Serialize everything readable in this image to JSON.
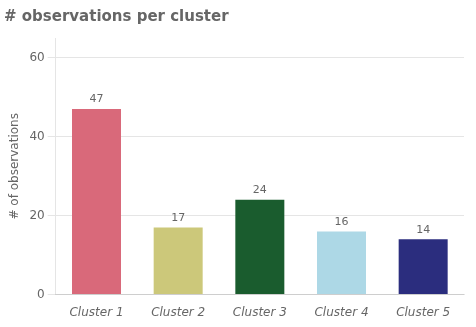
{
  "chart_data": {
    "type": "bar",
    "title": "# observations per cluster",
    "ylabel": "# of observations",
    "categories": [
      "Cluster 1",
      "Cluster 2",
      "Cluster 3",
      "Cluster 4",
      "Cluster 5"
    ],
    "values": [
      47,
      17,
      24,
      16,
      14
    ],
    "colors": [
      "#d9697a",
      "#ccc87a",
      "#1a5c2e",
      "#add8e6",
      "#2b2d7e"
    ],
    "ylim": [
      0,
      65
    ],
    "yticks": [
      0,
      20,
      40,
      60
    ],
    "grid": true,
    "data_labels": true
  }
}
